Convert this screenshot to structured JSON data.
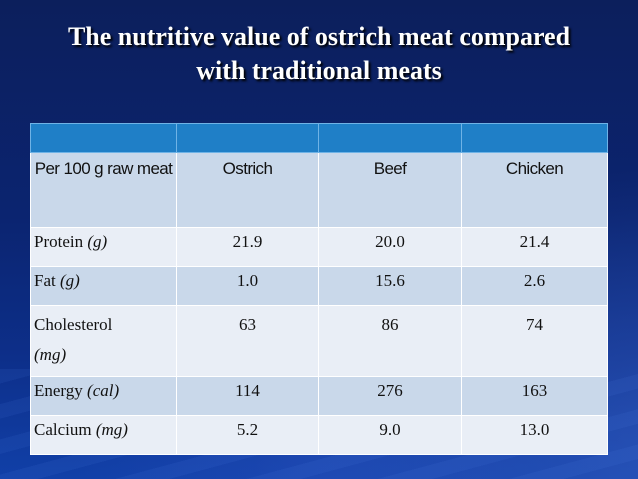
{
  "slide": {
    "title_line1": "The nutritive value of ostrich meat compared",
    "title_line2": "with traditional meats"
  },
  "table": {
    "header": {
      "label": "Per 100 g raw meat",
      "ostrich": "Ostrich",
      "beef": "Beef",
      "chicken": "Chicken"
    },
    "rows": [
      {
        "name": "Protein",
        "unit": "(g)",
        "ostrich": "21.9",
        "beef": "20.0",
        "chicken": "21.4"
      },
      {
        "name": "Fat",
        "unit": "(g)",
        "ostrich": "1.0",
        "beef": "15.6",
        "chicken": "2.6"
      },
      {
        "name": "Cholesterol",
        "unit": "(mg)",
        "ostrich": "63",
        "beef": "86",
        "chicken": "74"
      },
      {
        "name": "Energy",
        "unit": "(cal)",
        "ostrich": "114",
        "beef": "276",
        "chicken": "163"
      },
      {
        "name": "Calcium",
        "unit": "(mg)",
        "ostrich": "5.2",
        "beef": "9.0",
        "chicken": "13.0"
      }
    ]
  }
}
